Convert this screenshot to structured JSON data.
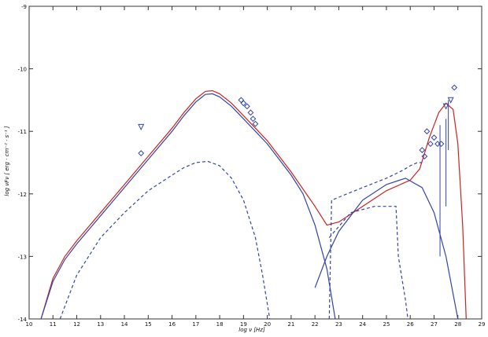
{
  "chart_data": {
    "type": "line",
    "xlabel": "log ν [Hz]",
    "ylabel": "log νFν [ erg · cm⁻² · s⁻¹ ]",
    "xlim": [
      10,
      29
    ],
    "ylim": [
      -14,
      -9
    ],
    "x_ticks": [
      "10",
      "11",
      "12",
      "13",
      "14",
      "15",
      "16",
      "17",
      "18",
      "19",
      "20",
      "21",
      "22",
      "23",
      "24",
      "25",
      "26",
      "27",
      "28",
      "29"
    ],
    "y_ticks": [
      "-9",
      "-10",
      "-11",
      "-12",
      "-13",
      "-14"
    ],
    "series": [
      {
        "style": "solid",
        "color": "#cc2222",
        "points": [
          [
            10.5,
            -14.0
          ],
          [
            11.0,
            -13.35
          ],
          [
            11.5,
            -13.0
          ],
          [
            12.0,
            -12.75
          ],
          [
            13.0,
            -12.3
          ],
          [
            14.0,
            -11.85
          ],
          [
            15.0,
            -11.4
          ],
          [
            16.0,
            -10.95
          ],
          [
            16.5,
            -10.7
          ],
          [
            17.0,
            -10.48
          ],
          [
            17.4,
            -10.36
          ],
          [
            17.7,
            -10.35
          ],
          [
            18.0,
            -10.4
          ],
          [
            18.5,
            -10.55
          ],
          [
            19.0,
            -10.75
          ],
          [
            19.5,
            -10.95
          ],
          [
            20.0,
            -11.15
          ],
          [
            21.0,
            -11.65
          ],
          [
            22.0,
            -12.2
          ],
          [
            22.5,
            -12.5
          ],
          [
            23.0,
            -12.45
          ],
          [
            24.0,
            -12.2
          ],
          [
            25.0,
            -11.95
          ],
          [
            26.0,
            -11.78
          ],
          [
            26.4,
            -11.6
          ],
          [
            26.8,
            -11.1
          ],
          [
            27.2,
            -10.7
          ],
          [
            27.5,
            -10.55
          ],
          [
            27.8,
            -10.65
          ],
          [
            28.0,
            -11.2
          ],
          [
            28.2,
            -12.5
          ],
          [
            28.35,
            -14.0
          ]
        ]
      },
      {
        "style": "solid",
        "color": "#3344aa",
        "points": [
          [
            10.5,
            -14.0
          ],
          [
            11.0,
            -13.4
          ],
          [
            11.5,
            -13.05
          ],
          [
            12.0,
            -12.8
          ],
          [
            13.0,
            -12.35
          ],
          [
            14.0,
            -11.9
          ],
          [
            15.0,
            -11.45
          ],
          [
            16.0,
            -11.0
          ],
          [
            16.5,
            -10.75
          ],
          [
            17.0,
            -10.53
          ],
          [
            17.4,
            -10.41
          ],
          [
            17.7,
            -10.4
          ],
          [
            18.0,
            -10.45
          ],
          [
            18.5,
            -10.6
          ],
          [
            19.0,
            -10.8
          ],
          [
            19.5,
            -11.0
          ],
          [
            20.0,
            -11.2
          ],
          [
            21.0,
            -11.7
          ],
          [
            21.5,
            -12.0
          ],
          [
            22.0,
            -12.5
          ],
          [
            22.5,
            -13.2
          ],
          [
            22.85,
            -14.0
          ]
        ]
      },
      {
        "style": "solid",
        "color": "#3344aa",
        "points": [
          [
            22.0,
            -13.5
          ],
          [
            22.5,
            -13.0
          ],
          [
            23.0,
            -12.6
          ],
          [
            24.0,
            -12.1
          ],
          [
            25.0,
            -11.85
          ],
          [
            25.8,
            -11.75
          ],
          [
            26.5,
            -11.9
          ],
          [
            27.0,
            -12.3
          ],
          [
            27.5,
            -13.0
          ],
          [
            28.0,
            -14.0
          ]
        ]
      },
      {
        "style": "dashed",
        "color": "#3344aa",
        "points": [
          [
            11.3,
            -14.0
          ],
          [
            12.0,
            -13.3
          ],
          [
            13.0,
            -12.7
          ],
          [
            14.0,
            -12.3
          ],
          [
            15.0,
            -11.95
          ],
          [
            16.0,
            -11.7
          ],
          [
            16.5,
            -11.58
          ],
          [
            17.0,
            -11.5
          ],
          [
            17.5,
            -11.48
          ],
          [
            18.0,
            -11.55
          ],
          [
            18.5,
            -11.75
          ],
          [
            19.0,
            -12.1
          ],
          [
            19.5,
            -12.7
          ],
          [
            19.8,
            -13.3
          ],
          [
            20.1,
            -14.0
          ]
        ]
      },
      {
        "style": "dashed",
        "color": "#3344aa",
        "points": [
          [
            22.6,
            -14.0
          ],
          [
            22.7,
            -12.1
          ],
          [
            24.0,
            -11.9
          ],
          [
            25.0,
            -11.75
          ],
          [
            25.7,
            -11.62
          ],
          [
            26.0,
            -11.55
          ],
          [
            26.3,
            -11.5
          ],
          [
            26.5,
            -11.5
          ]
        ]
      },
      {
        "style": "dashed",
        "color": "#3344aa",
        "points": [
          [
            22.6,
            -12.7
          ],
          [
            23.5,
            -12.3
          ],
          [
            24.5,
            -12.2
          ],
          [
            25.4,
            -12.2
          ],
          [
            25.5,
            -13.0
          ],
          [
            25.8,
            -13.7
          ],
          [
            25.9,
            -14.0
          ]
        ]
      }
    ],
    "points": [
      {
        "x": 14.7,
        "y": -11.35,
        "marker": "diamond"
      },
      {
        "x": 14.7,
        "y": -10.93,
        "marker": "triangle"
      },
      {
        "x": 18.9,
        "y": -10.5,
        "marker": "diamond"
      },
      {
        "x": 19.0,
        "y": -10.55,
        "marker": "diamond"
      },
      {
        "x": 19.15,
        "y": -10.6,
        "marker": "diamond"
      },
      {
        "x": 19.3,
        "y": -10.7,
        "marker": "diamond"
      },
      {
        "x": 19.4,
        "y": -10.8,
        "marker": "diamond"
      },
      {
        "x": 19.5,
        "y": -10.88,
        "marker": "diamond"
      },
      {
        "x": 26.5,
        "y": -11.3,
        "marker": "diamond"
      },
      {
        "x": 26.6,
        "y": -11.4,
        "marker": "diamond"
      },
      {
        "x": 26.7,
        "y": -11.0,
        "marker": "diamond"
      },
      {
        "x": 26.85,
        "y": -11.2,
        "marker": "diamond"
      },
      {
        "x": 27.0,
        "y": -11.1,
        "marker": "diamond"
      },
      {
        "x": 27.15,
        "y": -11.2,
        "marker": "diamond"
      },
      {
        "x": 27.3,
        "y": -11.2,
        "marker": "diamond"
      },
      {
        "x": 27.5,
        "y": -10.6,
        "marker": "triangle"
      },
      {
        "x": 27.7,
        "y": -10.5,
        "marker": "triangle"
      },
      {
        "x": 27.85,
        "y": -10.3,
        "marker": "diamond"
      }
    ],
    "error_bars": [
      {
        "x": 27.25,
        "y_low": -13.0,
        "y_high": -10.9
      },
      {
        "x": 27.5,
        "y_low": -12.2,
        "y_high": -10.8
      },
      {
        "x": 27.6,
        "y_low": -11.3,
        "y_high": -10.5
      }
    ],
    "grid": false
  }
}
